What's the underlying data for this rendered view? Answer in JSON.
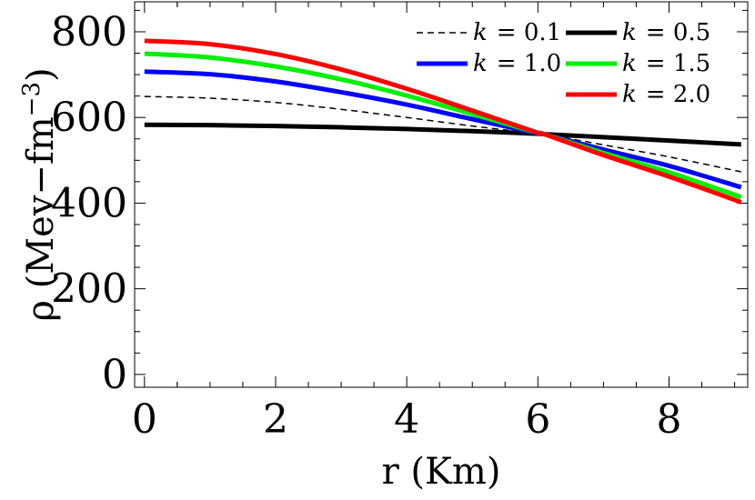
{
  "chart_data": {
    "type": "line",
    "title": "",
    "xlabel": "r (Km)",
    "ylabel_prefix": "ρ (Mev−fm",
    "ylabel_exp": "−3",
    "ylabel_suffix": ")",
    "xlim": [
      -0.15,
      9.2
    ],
    "ylim": [
      -30,
      870
    ],
    "xticks": [
      0,
      2,
      4,
      6,
      8
    ],
    "yticks": [
      0,
      200,
      400,
      600,
      800
    ],
    "grid": false,
    "legend_position": "top-right",
    "series": [
      {
        "name": "k = 0.1",
        "k_symbol": "k",
        "k_value": "= 0.1",
        "color": "#000000",
        "dash": "dashed",
        "width": 1.5,
        "x": [
          0,
          1,
          2,
          3,
          4,
          5,
          6,
          6.1,
          7,
          8,
          9.1
        ],
        "y": [
          649,
          645,
          635,
          619,
          600,
          580,
          562,
          561,
          536,
          508,
          473
        ]
      },
      {
        "name": "k = 0.5",
        "k_symbol": "k",
        "k_value": "= 0.5",
        "color": "#000000",
        "dash": "solid",
        "width": 5,
        "x": [
          0,
          1,
          2,
          3,
          4,
          5,
          6,
          6.1,
          7,
          8,
          9.1
        ],
        "y": [
          583,
          582,
          580,
          577,
          573,
          568,
          562,
          561,
          554,
          546,
          537
        ]
      },
      {
        "name": "k = 1.0",
        "k_symbol": "k",
        "k_value": "= 1.0",
        "color": "#0000ff",
        "dash": "solid",
        "width": 5,
        "x": [
          0,
          1,
          2,
          3,
          4,
          5,
          6,
          6.1,
          7,
          8,
          9.1
        ],
        "y": [
          707,
          701,
          684,
          659,
          630,
          596,
          563,
          561,
          525,
          487,
          437
        ]
      },
      {
        "name": "k = 1.5",
        "k_symbol": "k",
        "k_value": "= 1.5",
        "color": "#00ee00",
        "dash": "solid",
        "width": 5,
        "x": [
          0,
          1,
          2,
          3,
          4,
          5,
          6,
          6.1,
          7,
          8,
          9.1
        ],
        "y": [
          749,
          740,
          719,
          689,
          651,
          608,
          564,
          561,
          517,
          472,
          414
        ]
      },
      {
        "name": "k = 2.0",
        "k_symbol": "k",
        "k_value": "= 2.0",
        "color": "#ff0000",
        "dash": "solid",
        "width": 5,
        "x": [
          0,
          1,
          2,
          3,
          4,
          5,
          6,
          6.1,
          7,
          8,
          9.1
        ],
        "y": [
          779,
          771,
          748,
          712,
          667,
          616,
          564,
          561,
          512,
          462,
          402
        ]
      }
    ]
  }
}
